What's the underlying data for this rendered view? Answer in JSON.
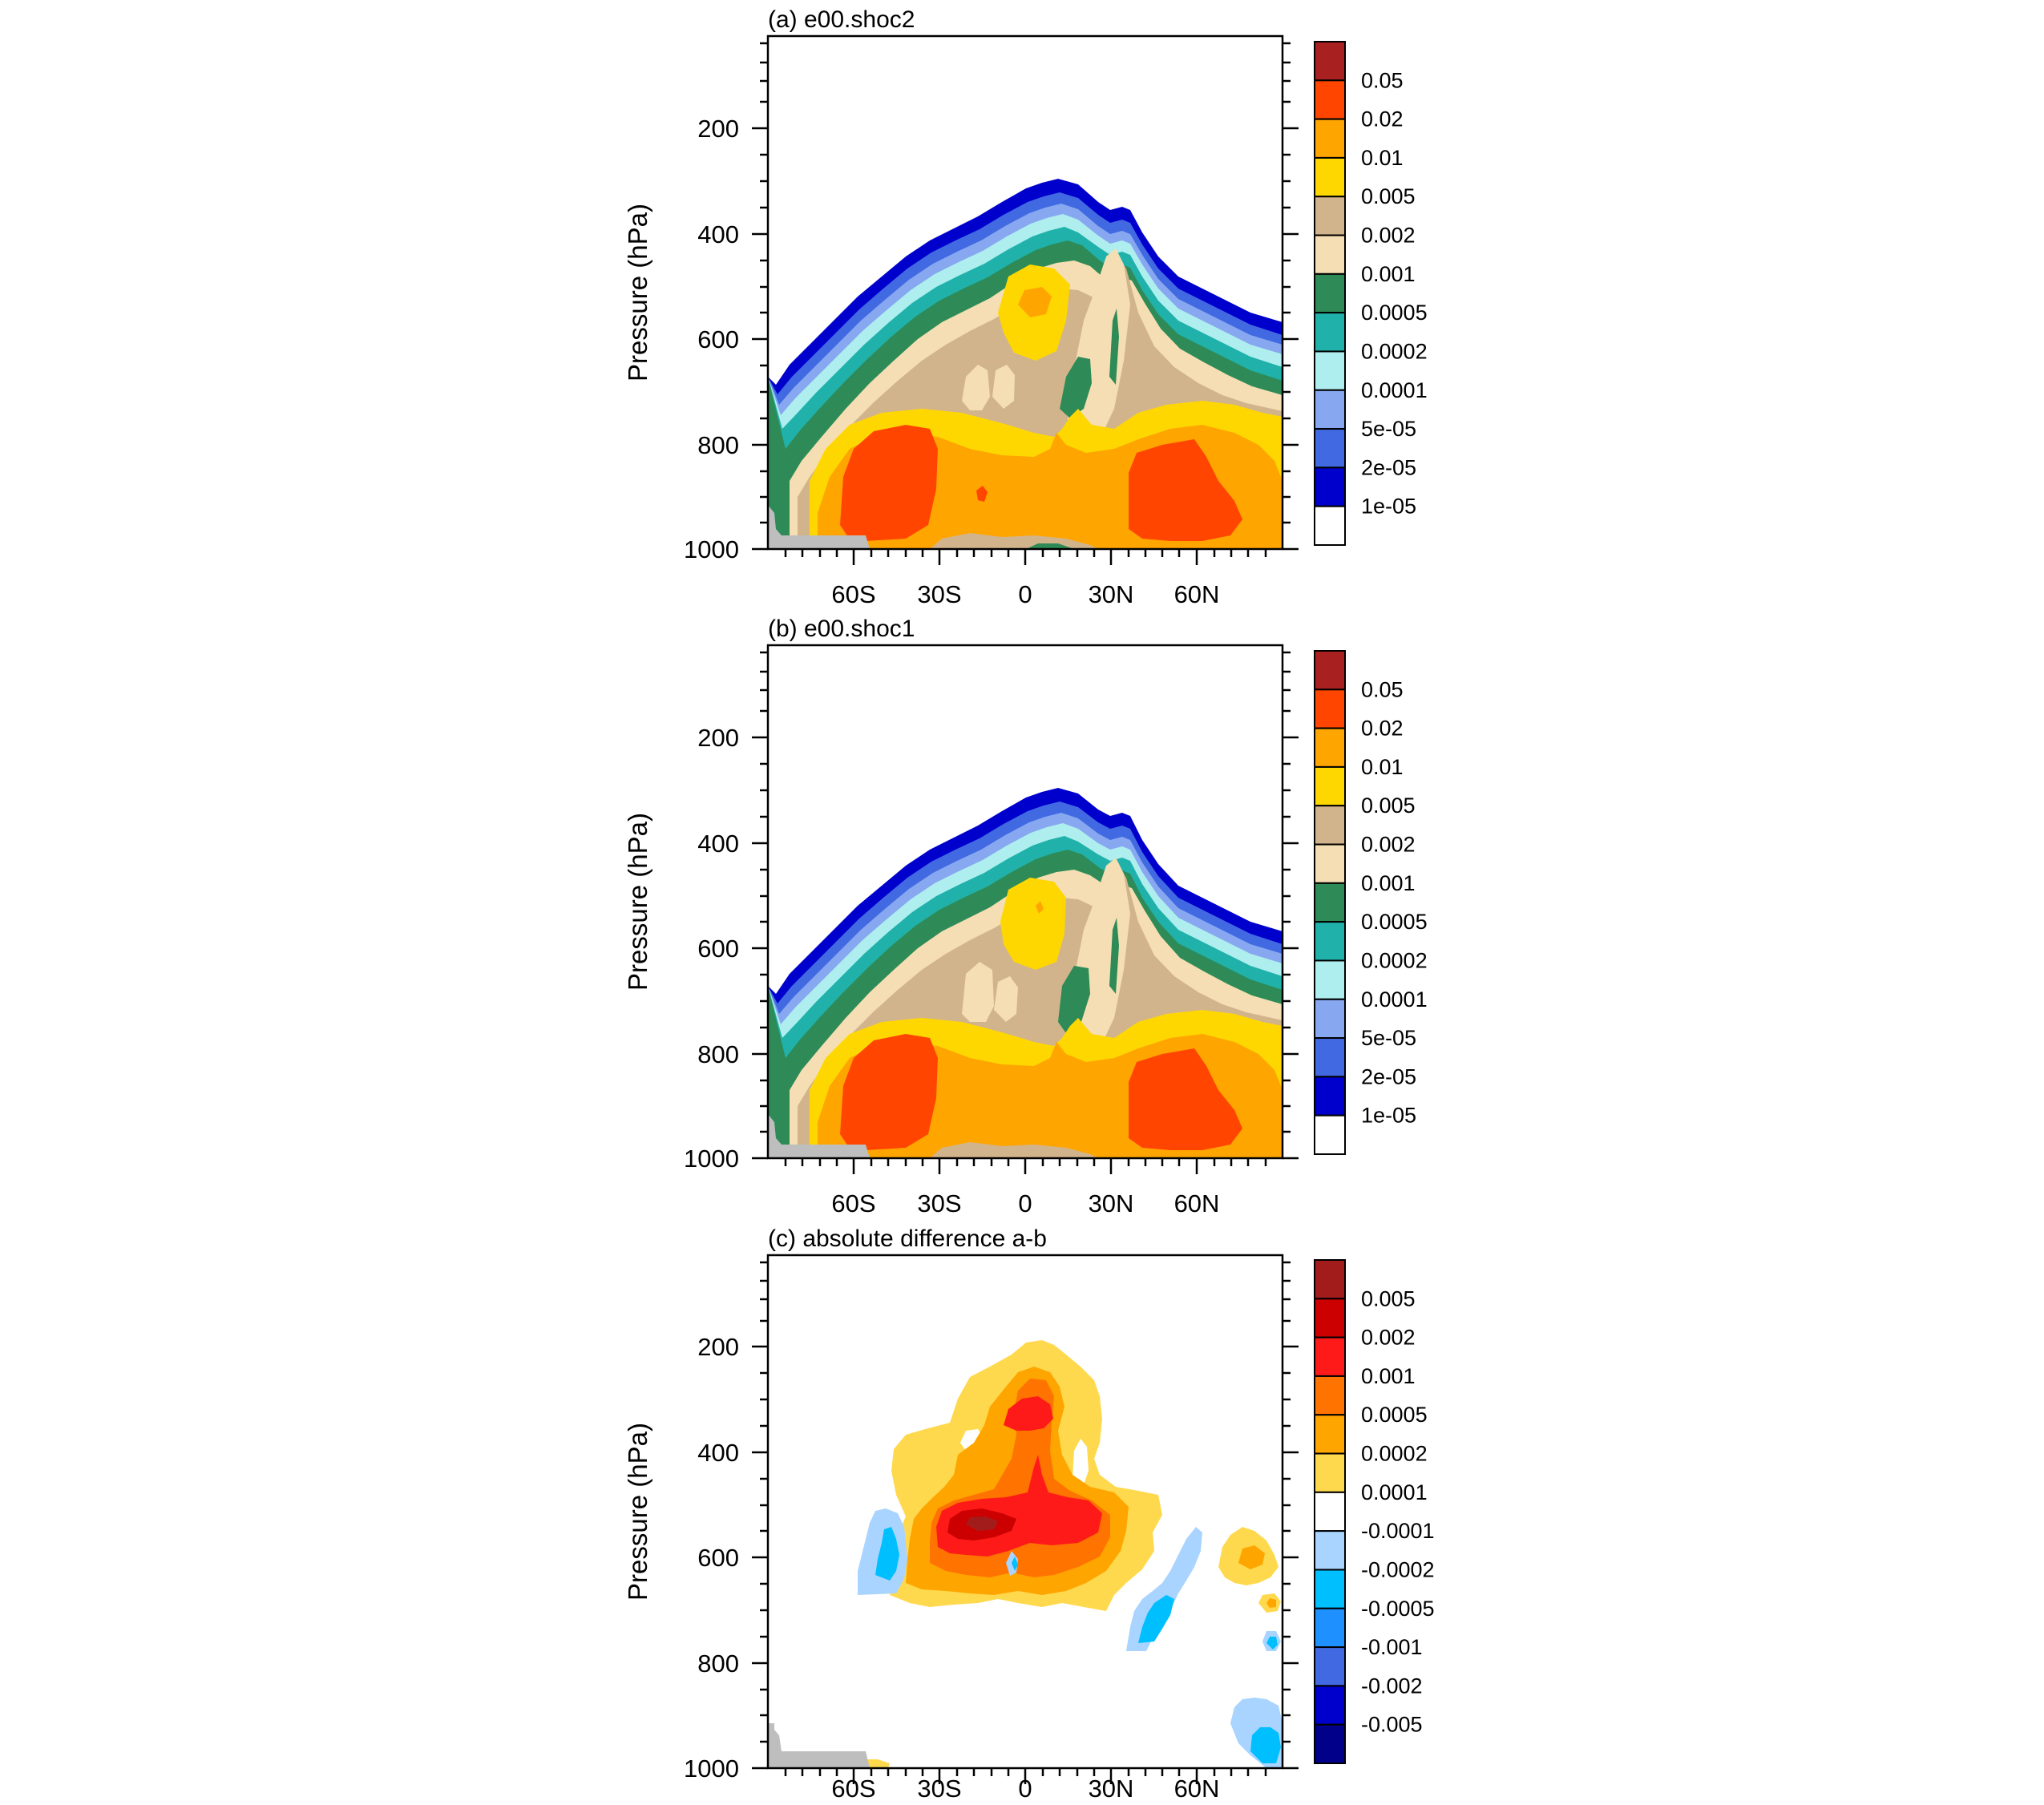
{
  "chart_data": [
    {
      "type": "heatmap",
      "title": "(a) e00.shoc2",
      "xlabel": "",
      "ylabel": "Pressure (hPa)",
      "x_ticks": [
        "60S",
        "30S",
        "0",
        "30N",
        "60N"
      ],
      "y_ticks": [
        "200",
        "400",
        "600",
        "800",
        "1000"
      ],
      "xlim": [
        -90,
        90
      ],
      "ylim": [
        1000,
        25
      ],
      "colorbar_labels": [
        "0.05",
        "0.02",
        "0.01",
        "0.005",
        "0.002",
        "0.001",
        "0.0005",
        "0.0002",
        "0.0001",
        "5e-05",
        "2e-05",
        "1e-05"
      ],
      "colorbar_colors": [
        "#a82020",
        "#ff4500",
        "#ffa500",
        "#ffd700",
        "#d2b48c",
        "#f5deb3",
        "#2e8b57",
        "#20b2aa",
        "#afeeee",
        "#87a8f0",
        "#4169e1",
        "#0000cd",
        "#ffffff"
      ]
    },
    {
      "type": "heatmap",
      "title": "(b) e00.shoc1",
      "xlabel": "",
      "ylabel": "Pressure (hPa)",
      "x_ticks": [
        "60S",
        "30S",
        "0",
        "30N",
        "60N"
      ],
      "y_ticks": [
        "200",
        "400",
        "600",
        "800",
        "1000"
      ],
      "xlim": [
        -90,
        90
      ],
      "ylim": [
        1000,
        25
      ],
      "colorbar_labels": [
        "0.05",
        "0.02",
        "0.01",
        "0.005",
        "0.002",
        "0.001",
        "0.0005",
        "0.0002",
        "0.0001",
        "5e-05",
        "2e-05",
        "1e-05"
      ],
      "colorbar_colors": [
        "#a82020",
        "#ff4500",
        "#ffa500",
        "#ffd700",
        "#d2b48c",
        "#f5deb3",
        "#2e8b57",
        "#20b2aa",
        "#afeeee",
        "#87a8f0",
        "#4169e1",
        "#0000cd",
        "#ffffff"
      ]
    },
    {
      "type": "heatmap",
      "title": "(c) absolute difference a-b",
      "xlabel": "",
      "ylabel": "Pressure (hPa)",
      "x_ticks": [
        "60S",
        "30S",
        "0",
        "30N",
        "60N"
      ],
      "y_ticks": [
        "200",
        "400",
        "600",
        "800",
        "1000"
      ],
      "xlim": [
        -90,
        90
      ],
      "ylim": [
        1000,
        25
      ],
      "colorbar_labels": [
        "0.005",
        "0.002",
        "0.001",
        "0.0005",
        "0.0002",
        "0.0001",
        "-0.0001",
        "-0.0002",
        "-0.0005",
        "-0.001",
        "-0.002",
        "-0.005"
      ],
      "colorbar_colors": [
        "#a31c1c",
        "#cc0000",
        "#ff1a1a",
        "#ff7300",
        "#ffa500",
        "#ffd94d",
        "#ffffff",
        "#a8d4ff",
        "#00bfff",
        "#1e90ff",
        "#4169e1",
        "#0000cd",
        "#00008b"
      ]
    }
  ]
}
